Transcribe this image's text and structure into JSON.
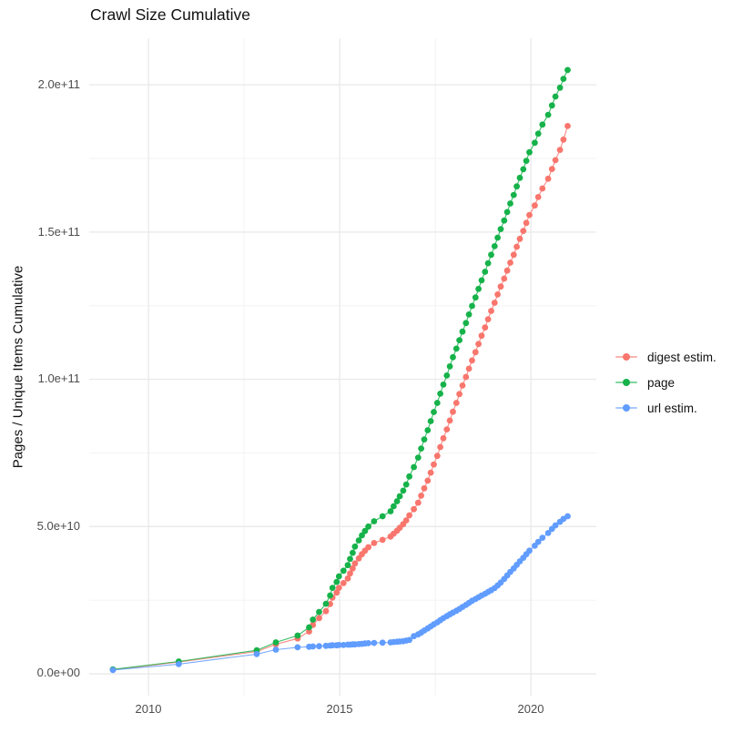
{
  "title": "Crawl Size Cumulative",
  "axes": {
    "y": {
      "title": "Pages / Unique Items Cumulative",
      "ticks": [
        "2.0e+11",
        "1.5e+11",
        "1.0e+11",
        "5.0e+10",
        "0.0e+00"
      ]
    },
    "x": {
      "title": "",
      "ticks": [
        "2010",
        "2015",
        "2020"
      ]
    }
  },
  "legend": {
    "items": [
      {
        "label": "digest estim.",
        "color": "#F8766D"
      },
      {
        "label": "page",
        "color": "#16B24A"
      },
      {
        "label": "url estim.",
        "color": "#619CFF"
      }
    ]
  },
  "chart_data": {
    "type": "line",
    "subtype": "scatter-line cumulative time series",
    "title": "Crawl Size Cumulative",
    "xlabel": "",
    "ylabel": "Pages / Unique Items Cumulative",
    "y_unit": "items, stored in billions (1e9); axis labeled in scientific notation",
    "xlim": [
      2008.45,
      2021.71
    ],
    "ylim_e9": [
      -7.4,
      215.8
    ],
    "grid": true,
    "legend_position": "right",
    "x_ticks": {
      "major": [
        2010,
        2015,
        2020
      ],
      "minor": [
        2012.5,
        2017.5
      ]
    },
    "y_ticks": {
      "major_e9": [
        0,
        50,
        100,
        150,
        200
      ],
      "minor_e9": [
        25,
        75,
        125,
        175
      ],
      "major_labels": [
        "0.0e+00",
        "5.0e+10",
        "1.0e+11",
        "1.5e+11",
        "2.0e+11"
      ]
    },
    "x": [
      2009.07,
      2010.79,
      2012.83,
      2013.33,
      2013.9,
      2014.2,
      2014.3,
      2014.46,
      2014.64,
      2014.75,
      2014.81,
      2014.92,
      2014.98,
      2015.1,
      2015.21,
      2015.27,
      2015.34,
      2015.4,
      2015.5,
      2015.58,
      2015.66,
      2015.75,
      2015.9,
      2016.12,
      2016.33,
      2016.41,
      2016.5,
      2016.57,
      2016.66,
      2016.74,
      2016.82,
      2016.94,
      2017.05,
      2017.13,
      2017.21,
      2017.3,
      2017.38,
      2017.46,
      2017.55,
      2017.63,
      2017.71,
      2017.8,
      2017.88,
      2017.96,
      2018.05,
      2018.13,
      2018.21,
      2018.3,
      2018.38,
      2018.46,
      2018.55,
      2018.63,
      2018.71,
      2018.8,
      2018.88,
      2018.96,
      2019.05,
      2019.13,
      2019.21,
      2019.3,
      2019.38,
      2019.46,
      2019.55,
      2019.63,
      2019.71,
      2019.8,
      2019.88,
      2019.96,
      2020.1,
      2020.19,
      2020.3,
      2020.45,
      2020.55,
      2020.64,
      2020.76,
      2020.85,
      2020.96
    ],
    "series": [
      {
        "name": "digest estim.",
        "color": "#F8766D",
        "values_e9": [
          1.4,
          4.0,
          7.6,
          10.0,
          12.0,
          14.4,
          16.6,
          18.9,
          21.3,
          23.7,
          25.9,
          27.6,
          29.2,
          30.8,
          32.4,
          34.1,
          35.8,
          37.5,
          39.2,
          40.6,
          41.8,
          43.0,
          44.4,
          45.5,
          46.6,
          47.6,
          48.6,
          49.6,
          50.8,
          52.1,
          53.8,
          55.9,
          58.1,
          60.5,
          63.0,
          65.6,
          68.3,
          71.1,
          74.0,
          77.0,
          80.0,
          83.0,
          86.0,
          89.0,
          92.0,
          95.0,
          97.9,
          100.8,
          103.6,
          106.4,
          109.2,
          112.0,
          114.8,
          117.6,
          120.4,
          123.2,
          126.0,
          128.8,
          131.5,
          134.2,
          136.9,
          139.6,
          142.3,
          145.0,
          147.7,
          150.4,
          153.1,
          155.8,
          159.0,
          161.9,
          164.8,
          168.1,
          171.4,
          174.4,
          177.9,
          181.4,
          186.0
        ]
      },
      {
        "name": "page",
        "color": "#16B24A",
        "values_e9": [
          1.5,
          4.2,
          8.0,
          10.7,
          13.0,
          15.8,
          18.4,
          21.0,
          23.8,
          26.6,
          29.2,
          31.2,
          33.1,
          35.0,
          36.9,
          39.0,
          41.1,
          43.2,
          45.3,
          47.0,
          48.5,
          50.0,
          51.8,
          53.5,
          55.2,
          56.9,
          58.6,
          60.3,
          62.2,
          64.3,
          67.0,
          70.2,
          73.4,
          76.5,
          79.6,
          82.7,
          85.8,
          88.9,
          92.0,
          95.1,
          98.2,
          101.3,
          104.4,
          107.5,
          110.4,
          113.3,
          116.2,
          119.1,
          122.0,
          124.9,
          127.8,
          130.7,
          133.6,
          136.5,
          139.4,
          142.3,
          145.2,
          148.1,
          151.0,
          153.9,
          156.8,
          159.7,
          162.6,
          165.5,
          168.4,
          171.3,
          174.2,
          177.1,
          180.3,
          183.4,
          186.5,
          189.8,
          193.0,
          196.0,
          199.0,
          202.0,
          205.0
        ]
      },
      {
        "name": "url estim.",
        "color": "#619CFF",
        "values_e9": [
          1.3,
          3.3,
          6.7,
          8.2,
          9.0,
          9.2,
          9.3,
          9.4,
          9.5,
          9.6,
          9.7,
          9.7,
          9.8,
          9.8,
          9.9,
          9.9,
          10.0,
          10.0,
          10.1,
          10.2,
          10.3,
          10.4,
          10.5,
          10.6,
          10.7,
          10.8,
          10.9,
          11.0,
          11.1,
          11.3,
          11.5,
          12.8,
          13.4,
          14.0,
          14.7,
          15.4,
          16.1,
          16.8,
          17.5,
          18.2,
          18.9,
          19.6,
          20.2,
          20.8,
          21.4,
          22.0,
          22.7,
          23.4,
          24.1,
          24.8,
          25.4,
          26.0,
          26.6,
          27.2,
          27.8,
          28.4,
          29.1,
          30.0,
          31.0,
          32.2,
          33.4,
          34.6,
          35.8,
          37.0,
          38.2,
          39.4,
          40.6,
          41.8,
          43.5,
          44.8,
          46.2,
          47.8,
          49.2,
          50.4,
          51.6,
          52.6,
          53.5
        ]
      }
    ]
  }
}
